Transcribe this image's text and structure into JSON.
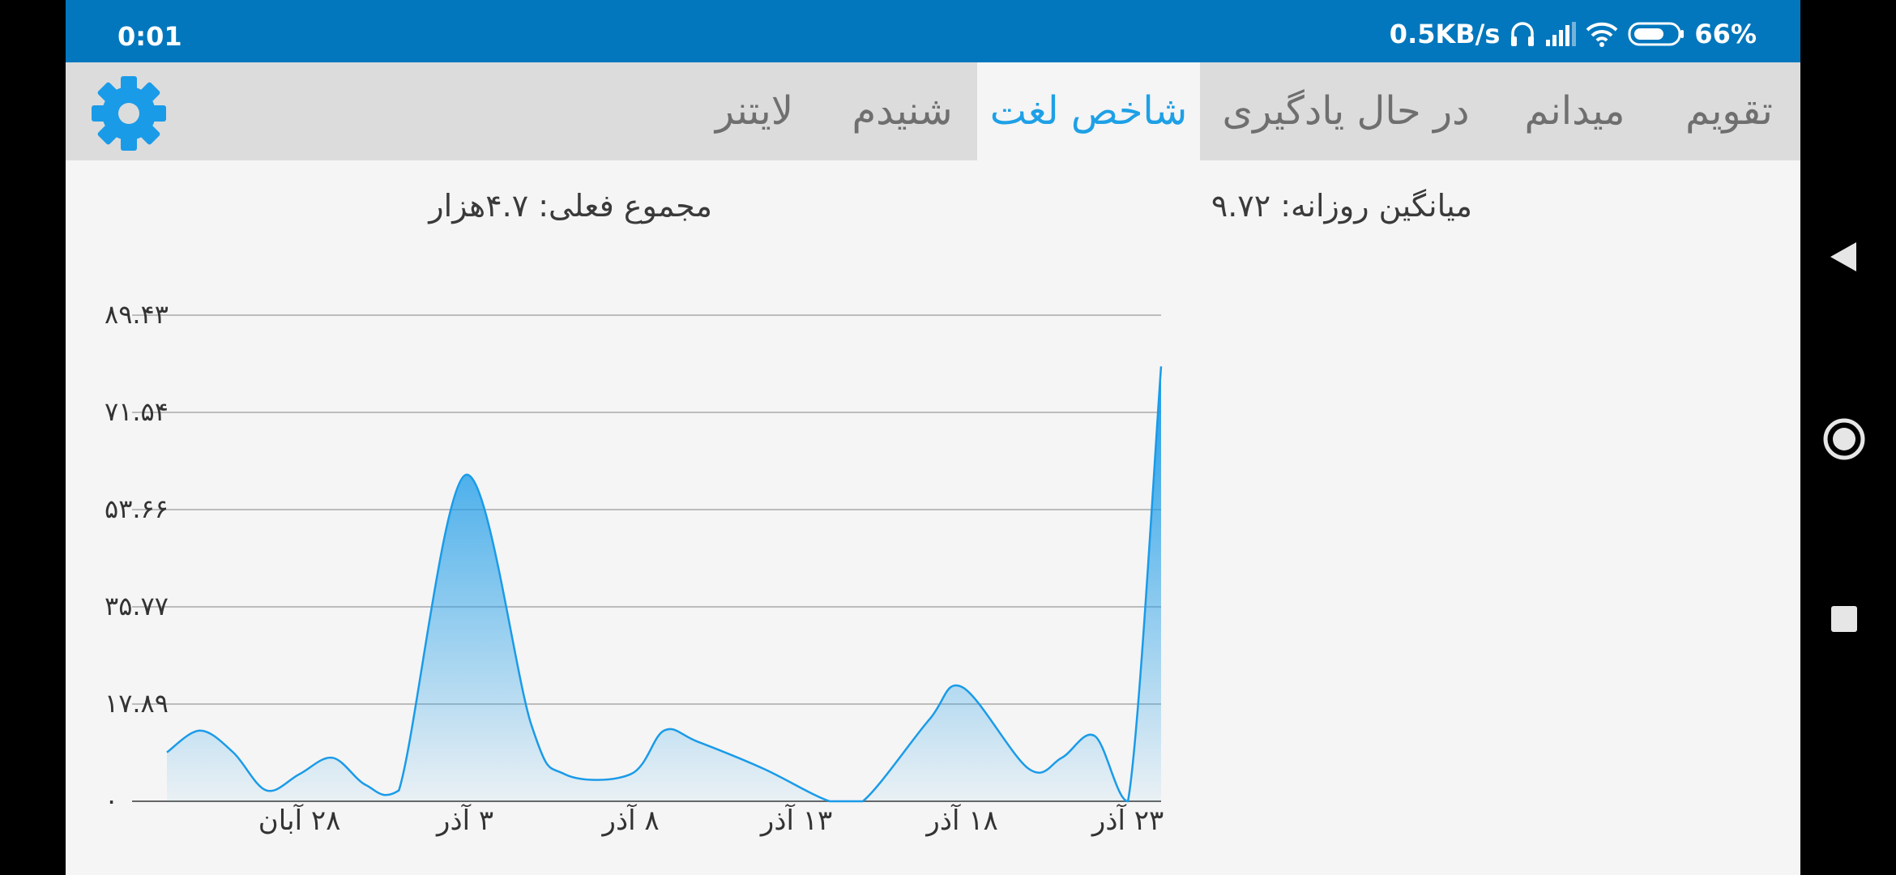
{
  "status_bar": {
    "time": "0:01",
    "network_speed": "0.5KB/s",
    "battery": "66%",
    "icons": [
      "headphones-icon",
      "signal-icon",
      "wifi-icon",
      "battery-icon"
    ]
  },
  "tabs": [
    {
      "label": "تقویم",
      "active": false
    },
    {
      "label": "میدانم",
      "active": false
    },
    {
      "label": "در حال یادگیری",
      "active": false
    },
    {
      "label": "شاخص لغت",
      "active": true
    },
    {
      "label": "شنیدم",
      "active": false
    },
    {
      "label": "لایتنر",
      "active": false
    }
  ],
  "settings_icon": "gear-icon",
  "stats": {
    "daily_average": "میانگین روزانه: ۹.۷۲",
    "current_total": "مجموع فعلی: ۴.۷هزار"
  },
  "colors": {
    "status_bar": "#0277bd",
    "accent": "#1ea0e6",
    "tab_bar": "#dcdcdc",
    "series": "#1a9be8"
  },
  "chart_data": {
    "type": "area",
    "title": "",
    "xlabel": "",
    "ylabel": "",
    "ylim": [
      0,
      89.43
    ],
    "y_ticks": [
      "۰",
      "۱۷.۸۹",
      "۳۵.۷۷",
      "۵۳.۶۶",
      "۷۱.۵۴",
      "۸۹.۴۳"
    ],
    "x_ticks": [
      {
        "label": "۲۸ آبان",
        "day": 4
      },
      {
        "label": "۳ آذر",
        "day": 9
      },
      {
        "label": "۸ آذر",
        "day": 14
      },
      {
        "label": "۱۳ آذر",
        "day": 19
      },
      {
        "label": "۱۸ آذر",
        "day": 24
      },
      {
        "label": "۲۳ آذر",
        "day": 29
      }
    ],
    "x_range": [
      0,
      30
    ],
    "grid": true,
    "smooth": true,
    "series": [
      {
        "values": [
          [
            0,
            9
          ],
          [
            1,
            13
          ],
          [
            2,
            9
          ],
          [
            3,
            2
          ],
          [
            4,
            5
          ],
          [
            5,
            8
          ],
          [
            6,
            3
          ],
          [
            7,
            2
          ],
          [
            9,
            60
          ],
          [
            11,
            14
          ],
          [
            12,
            5
          ],
          [
            14,
            5
          ],
          [
            15,
            13
          ],
          [
            16,
            11
          ],
          [
            18,
            6
          ],
          [
            20,
            0
          ],
          [
            21,
            0
          ],
          [
            23,
            15
          ],
          [
            24,
            21
          ],
          [
            26,
            6
          ],
          [
            27,
            8
          ],
          [
            28,
            12
          ],
          [
            29,
            0
          ],
          [
            30,
            80
          ]
        ]
      }
    ]
  },
  "nav_bar": {
    "back_icon": "back-triangle-icon",
    "home_icon": "home-circle-icon",
    "recents_icon": "recents-square-icon"
  }
}
